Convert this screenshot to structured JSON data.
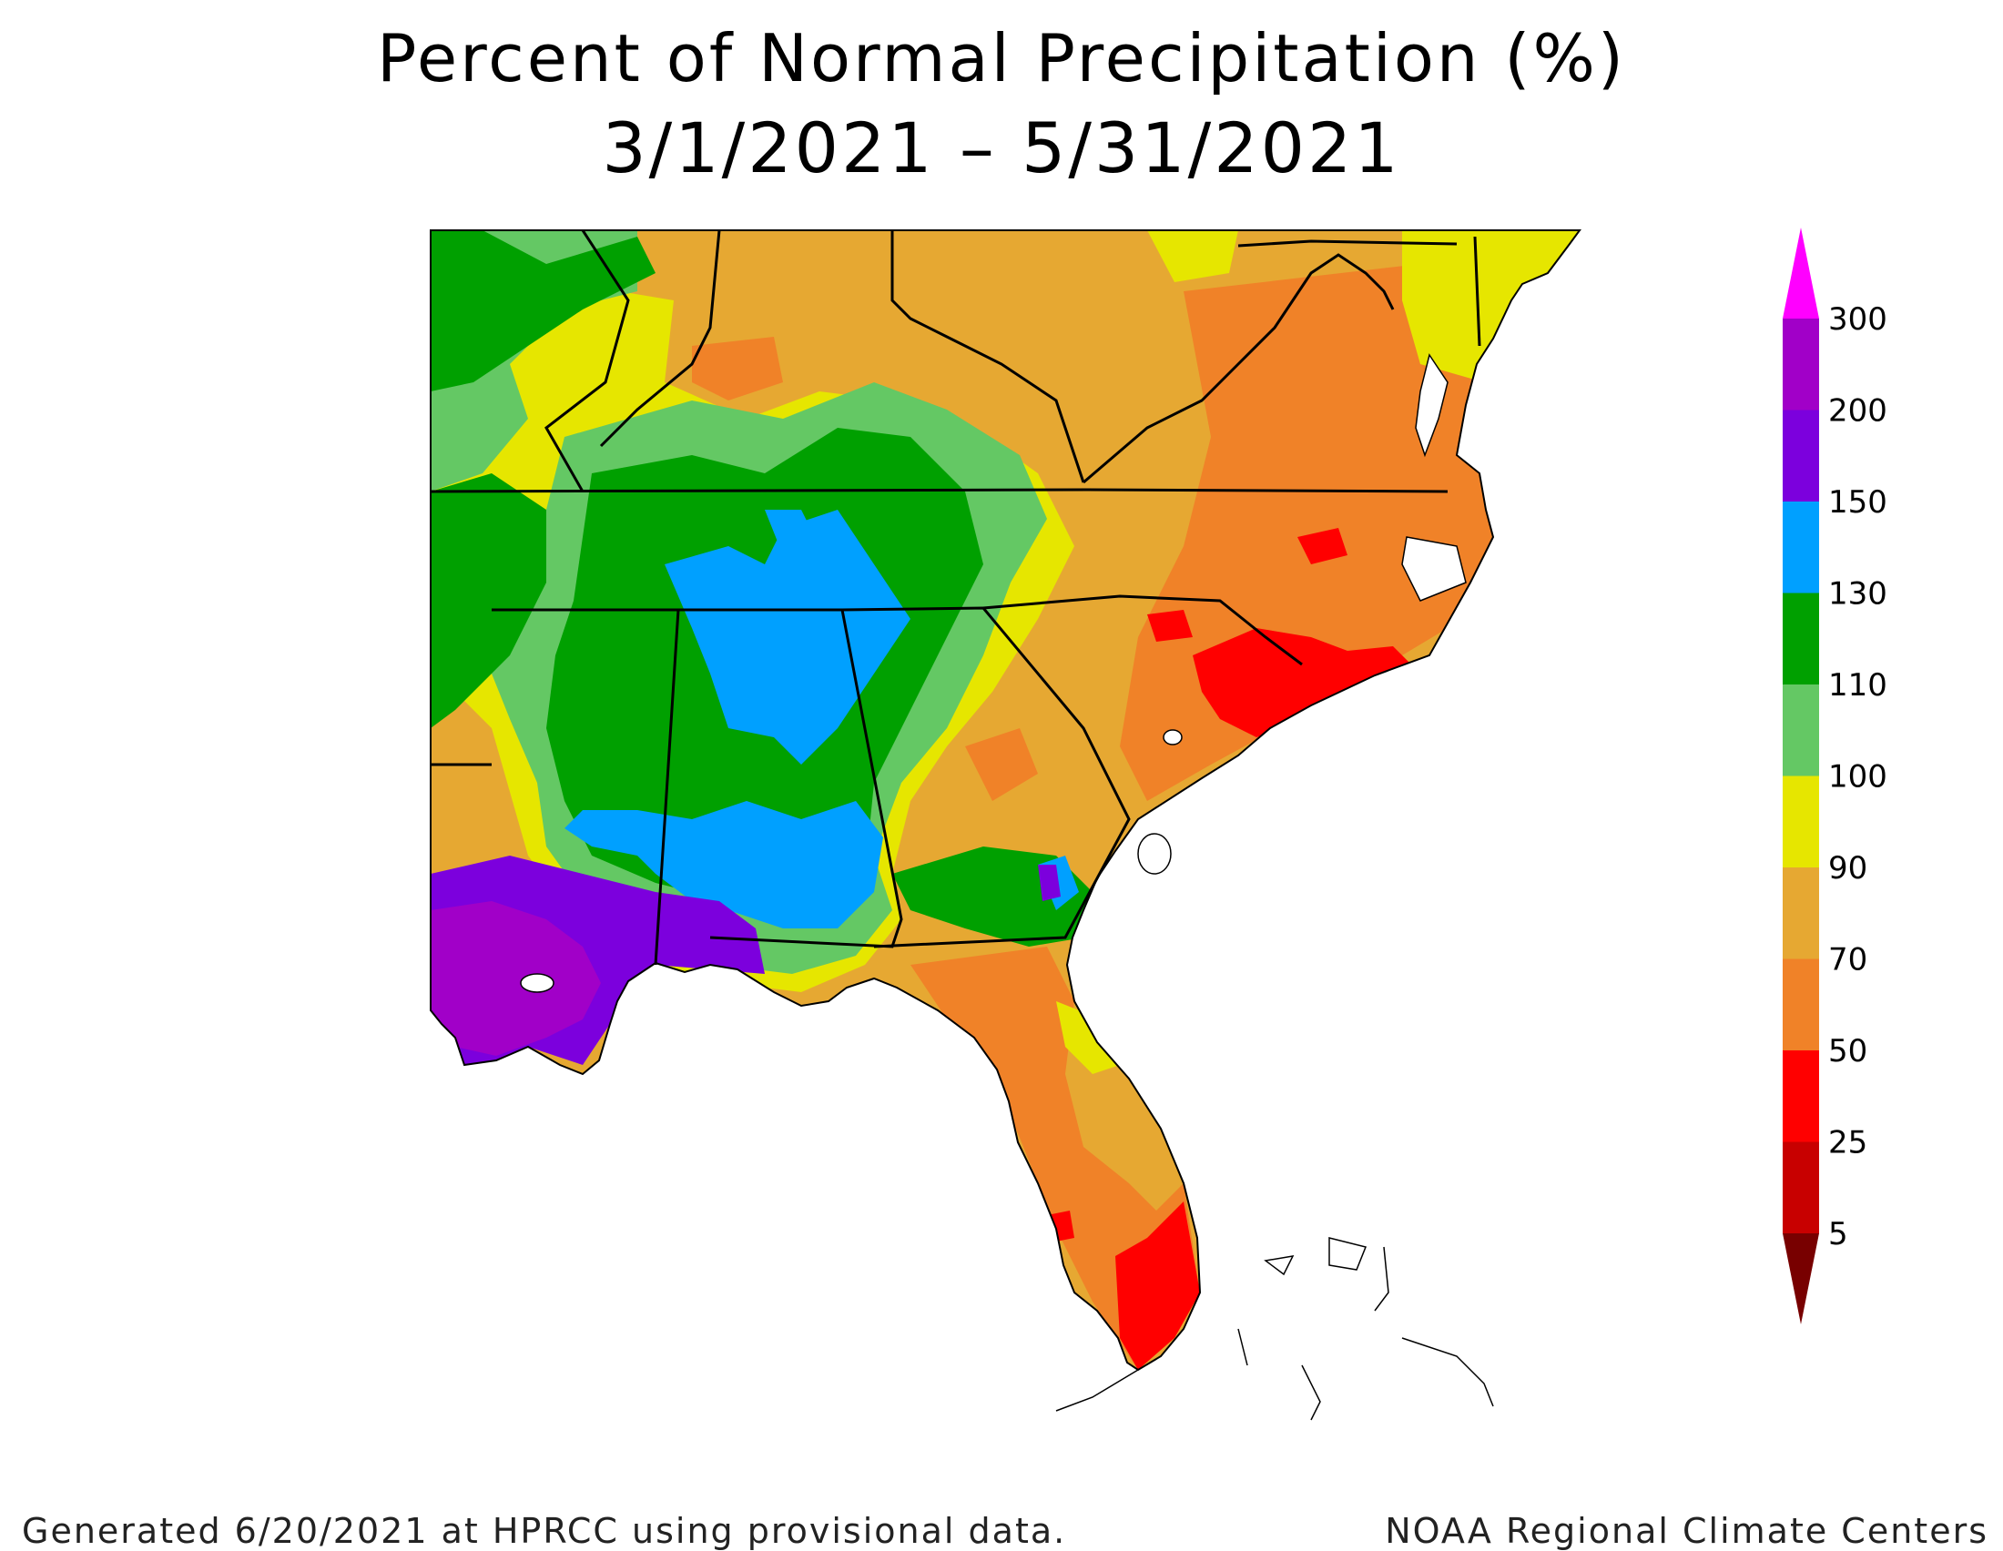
{
  "title": "Percent of Normal Precipitation (%)",
  "subtitle": "3/1/2021 – 5/31/2021",
  "footer": {
    "left": "Generated 6/20/2021 at HPRCC using provisional data.",
    "right": "NOAA Regional Climate Centers"
  },
  "legend": {
    "labels": [
      "300",
      "200",
      "150",
      "130",
      "110",
      "100",
      "90",
      "70",
      "50",
      "25",
      "5"
    ],
    "colors": [
      "#a100c8",
      "#7c00dd",
      "#00a0ff",
      "#00a000",
      "#64c864",
      "#e6e600",
      "#e6a832",
      "#f08228",
      "#ff0000",
      "#c80000"
    ],
    "top_color": "#ff00ff",
    "bottom_color": "#780000"
  },
  "map": {
    "region": "Southeast United States",
    "water_color": "#ffffff",
    "boundary_color": "#000000"
  }
}
